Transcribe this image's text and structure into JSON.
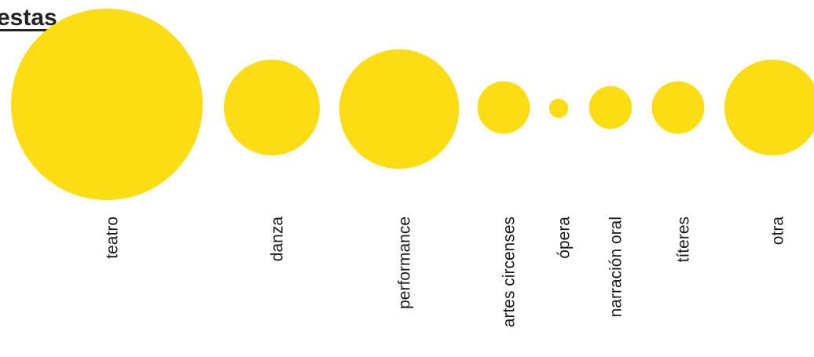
{
  "header": {
    "title_fragment": "estas"
  },
  "colors": {
    "bubble": "#FCDC12",
    "text": "#1a1a1a"
  },
  "chart_data": {
    "type": "bubble",
    "title": "",
    "categories": [
      "teatro",
      "danza",
      "performance",
      "artes circenses",
      "ópera",
      "narración oral",
      "títeres",
      "otra"
    ],
    "values": [
      100,
      25,
      39,
      7.5,
      1,
      5,
      7.5,
      25
    ],
    "grid": false,
    "legend": "none"
  }
}
